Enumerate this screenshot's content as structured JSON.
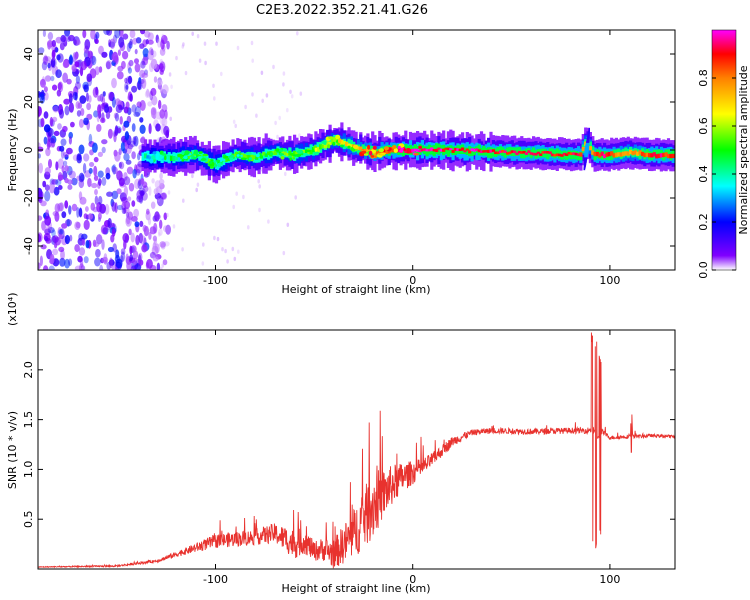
{
  "title": "C2E3.2022.352.21.41.G26",
  "chart_data": [
    {
      "type": "heatmap",
      "xlabel": "Height of straight line (km)",
      "ylabel": "Frequency (Hz)",
      "xlim": [
        -190,
        133
      ],
      "ylim": [
        -50,
        50
      ],
      "x_ticks": [
        -100,
        0,
        100
      ],
      "x_tick_labels": [
        "-100",
        "0",
        "100"
      ],
      "y_ticks": [
        -40,
        -20,
        0,
        20,
        40
      ],
      "y_tick_labels": [
        "-40",
        "-20",
        "0",
        "20",
        "40"
      ],
      "colorbar": {
        "label": "Normalized spectral amplitude",
        "range": [
          0,
          1
        ],
        "ticks": [
          0,
          0.2,
          0.4,
          0.6,
          0.8
        ],
        "tick_labels": [
          "0.0",
          "0.2",
          "0.4",
          "0.6",
          "0.8"
        ],
        "colors": [
          "#ffffff",
          "#8000ff",
          "#0000ff",
          "#00ffff",
          "#00ff00",
          "#ffff00",
          "#ff8000",
          "#ff0000",
          "#ff00ff"
        ]
      },
      "noise_region_x": [
        -190,
        -130
      ],
      "signal_track": {
        "x": [
          -137,
          -120,
          -110,
          -100,
          -90,
          -80,
          -70,
          -60,
          -50,
          -40,
          -35,
          -30,
          -20,
          -10,
          0,
          20,
          50,
          85,
          88,
          92,
          100,
          110,
          120,
          133
        ],
        "freq": [
          -3,
          -3,
          -2,
          -6,
          -2,
          -3,
          -1,
          -2,
          0,
          4,
          3,
          1,
          -1,
          0,
          0,
          0,
          -1,
          -2,
          4,
          -2,
          -2,
          -1,
          -2,
          -2
        ],
        "amplitude": [
          0.35,
          0.45,
          0.5,
          0.45,
          0.5,
          0.5,
          0.5,
          0.55,
          0.55,
          0.6,
          0.65,
          0.7,
          0.8,
          0.9,
          0.95,
          0.95,
          0.9,
          0.9,
          0.6,
          0.9,
          0.9,
          0.7,
          0.9,
          0.9
        ]
      }
    },
    {
      "type": "line",
      "xlabel": "Height of straight line (km)",
      "ylabel": "SNR (10 * v/v)",
      "y_multiplier_label": "(x10⁴)",
      "xlim": [
        -190,
        133
      ],
      "ylim": [
        0,
        24000
      ],
      "x_ticks": [
        -100,
        0,
        100
      ],
      "x_tick_labels": [
        "-100",
        "0",
        "100"
      ],
      "y_ticks": [
        5000,
        10000,
        15000,
        20000
      ],
      "y_tick_labels": [
        "0.5",
        "1.0",
        "1.5",
        "2.0"
      ],
      "color": "#e8322e",
      "series": [
        {
          "x": [
            -190,
            -150,
            -130,
            -115,
            -100,
            -80,
            -70,
            -60,
            -55,
            -50,
            -45,
            -40,
            -35,
            -30,
            -25,
            -20,
            -15,
            -10,
            -5,
            0,
            5,
            10,
            20,
            30,
            40,
            60,
            80,
            88,
            92,
            94,
            96,
            100,
            110,
            112,
            114,
            120,
            133
          ],
          "y": [
            200,
            300,
            800,
            1800,
            2800,
            3200,
            3600,
            2500,
            2800,
            1800,
            2000,
            1500,
            2500,
            3500,
            5000,
            6500,
            7500,
            8500,
            9200,
            9700,
            10200,
            11000,
            12800,
            13700,
            13900,
            13800,
            13900,
            13900,
            14000,
            13000,
            13800,
            13200,
            13300,
            13400,
            13300,
            13400,
            13300
          ],
          "spread": [
            40,
            80,
            150,
            350,
            700,
            800,
            1000,
            1500,
            1300,
            1000,
            1200,
            1500,
            2000,
            2500,
            3000,
            3500,
            2500,
            2000,
            1500,
            1200,
            900,
            700,
            500,
            300,
            300,
            300,
            300,
            300,
            300,
            300,
            300,
            200,
            200,
            200,
            200,
            150,
            150
          ]
        }
      ],
      "spikes": [
        {
          "x": 91,
          "min": 2000,
          "max": 23800
        },
        {
          "x": 93,
          "min": 1800,
          "max": 23500
        },
        {
          "x": 95,
          "min": 3000,
          "max": 22000
        },
        {
          "x": 111,
          "min": 10500,
          "max": 16000
        }
      ]
    }
  ]
}
